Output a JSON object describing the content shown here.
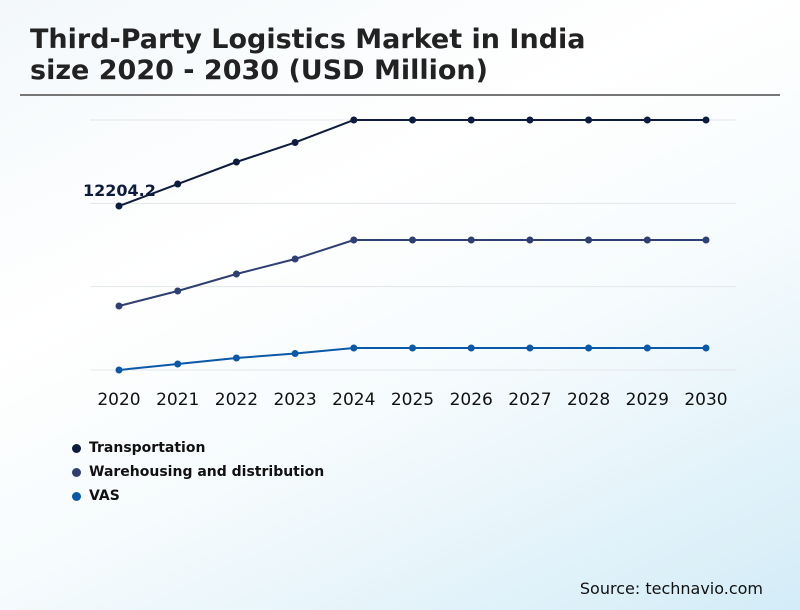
{
  "title_line1": "Third-Party Logistics Market in India",
  "title_line2": "size 2020 - 2030 (USD Million)",
  "source": "Source: technavio.com",
  "chart_data": {
    "type": "line",
    "title": "Third-Party Logistics Market in India size 2020 - 2030 (USD Million)",
    "categories": [
      "2020",
      "2021",
      "2022",
      "2023",
      "2024",
      "2025",
      "2026",
      "2027",
      "2028",
      "2029",
      "2030"
    ],
    "series": [
      {
        "name": "Transportation",
        "color": "#0d1b3e",
        "values": [
          12204.2,
          13842,
          15479,
          16931,
          18605,
          18605,
          18605,
          18605,
          18605,
          18605,
          18605
        ]
      },
      {
        "name": "Warehousing and distribution",
        "color": "#2e3f73",
        "values": [
          4763,
          5879,
          7145,
          8261,
          9675,
          9675,
          9675,
          9675,
          9675,
          9675,
          9675
        ]
      },
      {
        "name": "VAS",
        "color": "#0a58a8",
        "values": [
          0,
          447,
          893,
          1228,
          1637,
          1637,
          1637,
          1637,
          1637,
          1637,
          1637
        ]
      }
    ],
    "annotations": [
      {
        "category": "2020",
        "series": "Transportation",
        "label": "12204.2"
      }
    ],
    "ylim": [
      0,
      18605
    ],
    "grid": true,
    "legend_position": "bottom-left",
    "xlabel": "",
    "ylabel": ""
  }
}
